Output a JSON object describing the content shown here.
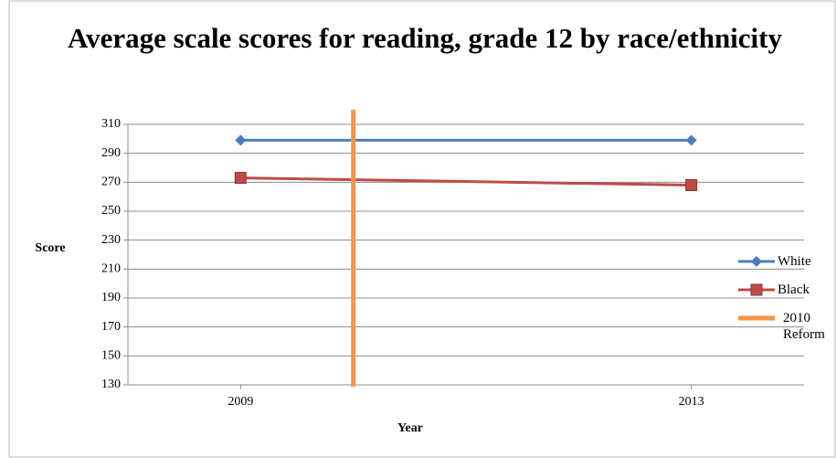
{
  "chart_data": {
    "type": "line",
    "title": "Average scale scores for reading, grade 12 by race/ethnicity",
    "x_label": "Year",
    "y_label": "Score",
    "x": [
      2009,
      2013
    ],
    "series": [
      {
        "name": "White",
        "color": "#4a7ebb",
        "marker": "diamond",
        "values": [
          299,
          299
        ]
      },
      {
        "name": "Black",
        "color": "#be4b48",
        "marker": "square",
        "values": [
          273,
          268
        ]
      }
    ],
    "reference_lines": [
      {
        "name": "2010 Reform",
        "x": 2010,
        "color": "#f79646"
      }
    ],
    "xlim": [
      2008,
      2014
    ],
    "xticks": [
      2009,
      2013
    ],
    "ylim": [
      130,
      310
    ],
    "yticks": [
      130,
      150,
      170,
      190,
      210,
      230,
      250,
      270,
      290,
      310
    ],
    "grid": true,
    "legend": "right"
  }
}
